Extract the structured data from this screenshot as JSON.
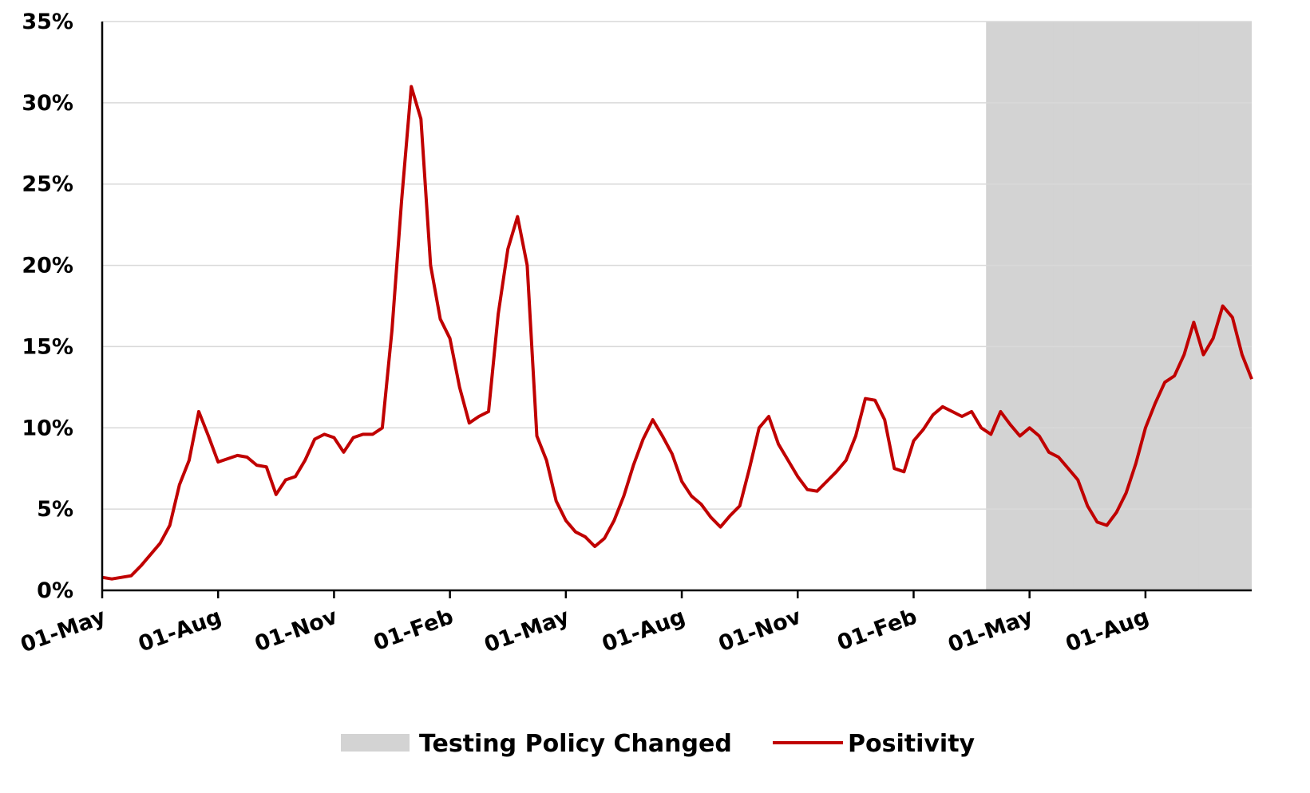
{
  "chart_data": {
    "type": "line",
    "categories": [
      "01-May",
      null,
      null,
      null,
      null,
      null,
      null,
      null,
      null,
      null,
      null,
      null,
      "01-Aug",
      null,
      null,
      null,
      null,
      null,
      null,
      null,
      null,
      null,
      null,
      null,
      "01-Nov",
      null,
      null,
      null,
      null,
      null,
      null,
      null,
      null,
      null,
      null,
      null,
      "01-Feb",
      null,
      null,
      null,
      null,
      null,
      null,
      null,
      null,
      null,
      null,
      null,
      "01-May",
      null,
      null,
      null,
      null,
      null,
      null,
      null,
      null,
      null,
      null,
      null,
      "01-Aug",
      null,
      null,
      null,
      null,
      null,
      null,
      null,
      null,
      null,
      null,
      null,
      "01-Nov",
      null,
      null,
      null,
      null,
      null,
      null,
      null,
      null,
      null,
      null,
      null,
      "01-Feb",
      null,
      null,
      null,
      null,
      null,
      null,
      null,
      null,
      null,
      null,
      null,
      "01-May",
      null,
      null,
      null,
      null,
      null,
      null,
      null,
      null,
      null,
      null,
      null,
      "01-Aug",
      null,
      null,
      null,
      null,
      null,
      null,
      null,
      null,
      null,
      null,
      null
    ],
    "series": [
      {
        "name": "Testing Policy Changed",
        "type": "bar",
        "color": "#d3d3d3",
        "values": [
          null,
          null,
          null,
          null,
          null,
          null,
          null,
          null,
          null,
          null,
          null,
          null,
          null,
          null,
          null,
          null,
          null,
          null,
          null,
          null,
          null,
          null,
          null,
          null,
          null,
          null,
          null,
          null,
          null,
          null,
          null,
          null,
          null,
          null,
          null,
          null,
          null,
          null,
          null,
          null,
          null,
          null,
          null,
          null,
          null,
          null,
          null,
          null,
          null,
          null,
          null,
          null,
          null,
          null,
          null,
          null,
          null,
          null,
          null,
          null,
          null,
          null,
          null,
          null,
          null,
          null,
          null,
          null,
          null,
          null,
          null,
          null,
          null,
          null,
          null,
          null,
          null,
          null,
          null,
          null,
          null,
          null,
          null,
          null,
          null,
          null,
          null,
          null,
          null,
          null,
          null,
          null,
          35,
          35,
          35,
          35,
          35,
          35,
          35,
          35,
          35,
          35,
          35,
          35,
          35,
          35,
          35,
          35,
          35,
          35,
          35,
          35,
          35,
          35,
          35,
          35,
          35,
          35,
          35,
          35
        ]
      },
      {
        "name": "Positivity",
        "type": "line",
        "color": "#c00000",
        "values": [
          0.8,
          0.7,
          0.8,
          0.9,
          1.5,
          2.2,
          2.9,
          4.0,
          6.5,
          8.0,
          11.0,
          9.5,
          7.9,
          8.1,
          8.3,
          8.2,
          7.7,
          7.6,
          5.9,
          6.8,
          7.0,
          8.0,
          9.3,
          9.6,
          9.4,
          8.5,
          9.4,
          9.6,
          9.6,
          10.0,
          16.0,
          24.0,
          31.0,
          29.0,
          20.0,
          16.7,
          15.5,
          12.5,
          10.3,
          10.7,
          11.0,
          17.0,
          21.0,
          23.0,
          20.0,
          9.5,
          8.0,
          5.5,
          4.3,
          3.6,
          3.3,
          2.7,
          3.2,
          4.3,
          5.8,
          7.7,
          9.3,
          10.5,
          9.5,
          8.4,
          6.7,
          5.8,
          5.3,
          4.5,
          3.9,
          4.6,
          5.2,
          7.5,
          10.0,
          10.7,
          9.0,
          8.0,
          7.0,
          6.2,
          6.1,
          6.7,
          7.3,
          8.0,
          9.5,
          11.8,
          11.7,
          10.5,
          7.5,
          7.3,
          9.2,
          9.9,
          10.8,
          11.3,
          11.0,
          10.7,
          11.0,
          10.0,
          9.6,
          11.0,
          10.2,
          9.5,
          10.0,
          9.5,
          8.5,
          8.2,
          7.5,
          6.8,
          5.2,
          4.2,
          4.0,
          4.8,
          6.0,
          7.8,
          10.0,
          11.5,
          12.8,
          13.2,
          14.5,
          16.5,
          14.5,
          15.5,
          17.5,
          16.8,
          14.5,
          13.0
        ]
      }
    ],
    "ylim": [
      0,
      35
    ],
    "yticks": [
      {
        "value": 0,
        "label": "0%"
      },
      {
        "value": 5,
        "label": "5%"
      },
      {
        "value": 10,
        "label": "10%"
      },
      {
        "value": 15,
        "label": "15%"
      },
      {
        "value": 20,
        "label": "20%"
      },
      {
        "value": 25,
        "label": "25%"
      },
      {
        "value": 30,
        "label": "30%"
      },
      {
        "value": 35,
        "label": "35%"
      }
    ],
    "grid": true,
    "legend": "bottom"
  }
}
